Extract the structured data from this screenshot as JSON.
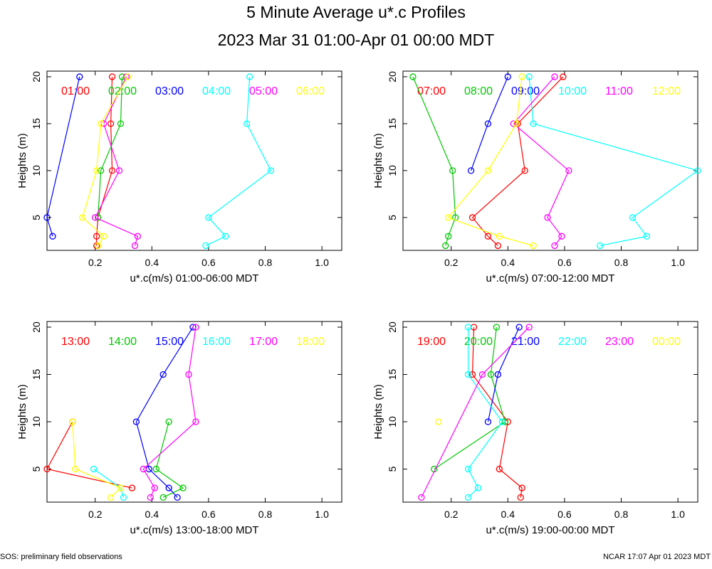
{
  "title": "5 Minute Average u*.c Profiles",
  "subtitle": "2023 Mar 31 01:00-Apr 01 00:00 MDT",
  "footer_left": "SOS: preliminary field observations",
  "footer_right": "NCAR 17:07 Apr 01 2023 MDT",
  "colors": [
    "#ff0000",
    "#00c800",
    "#0000ff",
    "#00ffff",
    "#ff00ff",
    "#ffff00"
  ],
  "chart_data": [
    {
      "type": "line",
      "xlabel": "u*.c(m/s) 01:00-06:00 MDT",
      "ylabel": "Heights (m)",
      "xlim": [
        0.03,
        1.07
      ],
      "ylim": [
        1.5,
        20.6
      ],
      "xticks": [
        "0.2",
        "0.4",
        "0.6",
        "0.8",
        "1.0"
      ],
      "yticks": [
        "5",
        "10",
        "15",
        "20"
      ],
      "series": [
        {
          "name": "01:00",
          "points": [
            [
              0.205,
              2
            ],
            [
              0.205,
              3
            ],
            [
              0.21,
              5
            ],
            [
              0.26,
              10
            ],
            [
              0.255,
              15
            ],
            [
              0.26,
              20
            ]
          ]
        },
        {
          "name": "02:00",
          "points": [
            [
              0.21,
              5
            ],
            [
              0.22,
              10
            ],
            [
              0.29,
              15
            ],
            [
              0.295,
              20
            ]
          ]
        },
        {
          "name": "03:00",
          "points": [
            [
              0.05,
              3
            ],
            [
              0.03,
              5
            ],
            [
              0.145,
              20
            ]
          ]
        },
        {
          "name": "04:00",
          "points": [
            [
              0.59,
              2
            ],
            [
              0.66,
              3
            ],
            [
              0.6,
              5
            ],
            [
              0.82,
              10
            ],
            [
              0.735,
              15
            ],
            [
              0.745,
              20
            ]
          ]
        },
        {
          "name": "05:00",
          "points": [
            [
              0.34,
              2
            ],
            [
              0.35,
              3
            ],
            [
              0.2,
              5
            ],
            [
              0.285,
              10
            ],
            [
              0.23,
              15
            ],
            [
              0.31,
              20
            ]
          ]
        },
        {
          "name": "06:00",
          "points": [
            [
              0.21,
              2
            ],
            [
              0.23,
              3
            ],
            [
              0.155,
              5
            ],
            [
              0.205,
              10
            ],
            [
              0.22,
              15
            ],
            [
              0.315,
              20
            ]
          ]
        }
      ]
    },
    {
      "type": "line",
      "xlabel": "u*.c(m/s) 07:00-12:00 MDT",
      "ylabel": "Heights (m)",
      "xlim": [
        0.03,
        1.07
      ],
      "ylim": [
        1.5,
        20.6
      ],
      "xticks": [
        "0.2",
        "0.4",
        "0.6",
        "0.8",
        "1.0"
      ],
      "yticks": [
        "5",
        "10",
        "15",
        "20"
      ],
      "series": [
        {
          "name": "07:00",
          "points": [
            [
              0.365,
              2
            ],
            [
              0.33,
              3
            ],
            [
              0.275,
              5
            ],
            [
              0.46,
              10
            ],
            [
              0.435,
              15
            ],
            [
              0.595,
              20
            ]
          ]
        },
        {
          "name": "08:00",
          "points": [
            [
              0.18,
              2
            ],
            [
              0.19,
              3
            ],
            [
              0.215,
              5
            ],
            [
              0.205,
              10
            ],
            [
              0.065,
              20
            ]
          ]
        },
        {
          "name": "09:00",
          "points": [
            [
              0.27,
              10
            ],
            [
              0.33,
              15
            ],
            [
              0.4,
              20
            ]
          ]
        },
        {
          "name": "10:00",
          "points": [
            [
              0.725,
              2
            ],
            [
              0.89,
              3
            ],
            [
              0.84,
              5
            ],
            [
              1.07,
              10
            ],
            [
              0.49,
              15
            ],
            [
              0.475,
              20
            ]
          ]
        },
        {
          "name": "11:00",
          "points": [
            [
              0.565,
              2
            ],
            [
              0.59,
              3
            ],
            [
              0.54,
              5
            ],
            [
              0.615,
              10
            ],
            [
              0.42,
              15
            ],
            [
              0.565,
              20
            ]
          ]
        },
        {
          "name": "12:00",
          "points": [
            [
              0.49,
              2
            ],
            [
              0.37,
              3
            ],
            [
              0.19,
              5
            ],
            [
              0.33,
              10
            ],
            [
              0.43,
              15
            ],
            [
              0.45,
              20
            ]
          ]
        }
      ]
    },
    {
      "type": "line",
      "xlabel": "u*.c(m/s) 13:00-18:00 MDT",
      "ylabel": "Heights (m)",
      "xlim": [
        0.03,
        1.07
      ],
      "ylim": [
        1.5,
        20.6
      ],
      "xticks": [
        "0.2",
        "0.4",
        "0.6",
        "0.8",
        "1.0"
      ],
      "yticks": [
        "5",
        "10",
        "15",
        "20"
      ],
      "series": [
        {
          "name": "13:00",
          "points": [
            [
              0.33,
              3
            ],
            [
              0.03,
              5
            ],
            [
              0.12,
              10
            ]
          ]
        },
        {
          "name": "14:00",
          "points": [
            [
              0.44,
              2
            ],
            [
              0.51,
              3
            ],
            [
              0.415,
              5
            ],
            [
              0.46,
              10
            ]
          ]
        },
        {
          "name": "15:00",
          "points": [
            [
              0.49,
              2
            ],
            [
              0.46,
              3
            ],
            [
              0.39,
              5
            ],
            [
              0.345,
              10
            ],
            [
              0.44,
              15
            ],
            [
              0.545,
              20
            ]
          ]
        },
        {
          "name": "16:00",
          "points": [
            [
              0.3,
              2
            ],
            [
              0.29,
              3
            ],
            [
              0.195,
              5
            ]
          ]
        },
        {
          "name": "17:00",
          "points": [
            [
              0.395,
              2
            ],
            [
              0.41,
              3
            ],
            [
              0.37,
              5
            ],
            [
              0.555,
              10
            ],
            [
              0.53,
              15
            ],
            [
              0.555,
              20
            ]
          ]
        },
        {
          "name": "18:00",
          "points": [
            [
              0.255,
              2
            ],
            [
              0.29,
              3
            ],
            [
              0.13,
              5
            ],
            [
              0.12,
              10
            ]
          ]
        }
      ]
    },
    {
      "type": "line",
      "xlabel": "u*.c(m/s) 19:00-00:00 MDT",
      "ylabel": "Heights (m)",
      "xlim": [
        0.03,
        1.07
      ],
      "ylim": [
        1.5,
        20.6
      ],
      "xticks": [
        "0.2",
        "0.4",
        "0.6",
        "0.8",
        "1.0"
      ],
      "yticks": [
        "5",
        "10",
        "15",
        "20"
      ],
      "series": [
        {
          "name": "19:00",
          "points": [
            [
              0.445,
              2
            ],
            [
              0.45,
              3
            ],
            [
              0.37,
              5
            ],
            [
              0.4,
              10
            ],
            [
              0.275,
              15
            ],
            [
              0.28,
              20
            ]
          ]
        },
        {
          "name": "20:00",
          "points": [
            [
              0.14,
              5
            ],
            [
              0.39,
              10
            ],
            [
              0.34,
              15
            ],
            [
              0.36,
              20
            ]
          ]
        },
        {
          "name": "21:00",
          "points": [
            [
              0.33,
              10
            ],
            [
              0.365,
              15
            ],
            [
              0.44,
              20
            ]
          ]
        },
        {
          "name": "22:00",
          "points": [
            [
              0.26,
              2
            ],
            [
              0.295,
              3
            ],
            [
              0.26,
              5
            ],
            [
              0.38,
              10
            ],
            [
              0.26,
              15
            ],
            [
              0.26,
              20
            ]
          ]
        },
        {
          "name": "23:00",
          "points": [
            [
              0.095,
              2
            ],
            [
              0.31,
              15
            ],
            [
              0.475,
              20
            ]
          ]
        },
        {
          "name": "00:00",
          "points": [
            [
              0.155,
              10
            ]
          ]
        }
      ]
    }
  ]
}
